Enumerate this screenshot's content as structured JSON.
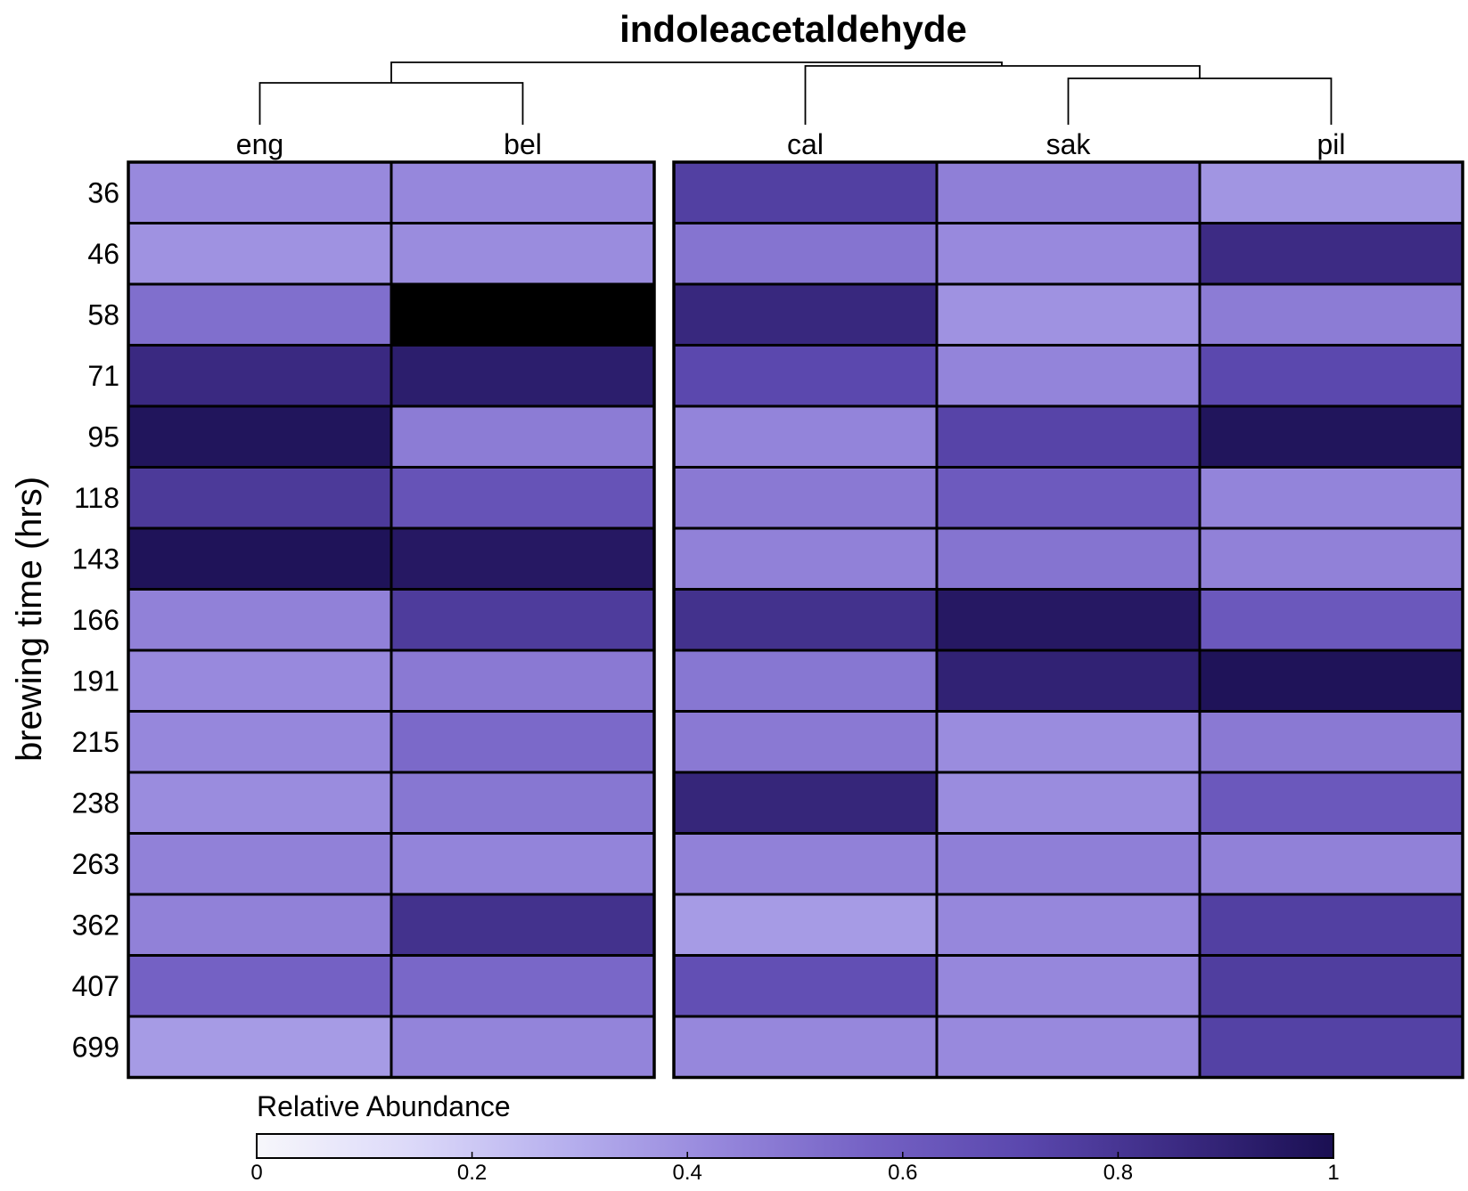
{
  "chart_data": {
    "type": "heatmap",
    "title": "indoleacetaldehyde",
    "ylabel": "brewing time (hrs)",
    "column_groups": [
      [
        "eng",
        "bel"
      ],
      [
        "cal",
        "sak",
        "pil"
      ]
    ],
    "columns": [
      "eng",
      "bel",
      "cal",
      "sak",
      "pil"
    ],
    "rows": [
      "36",
      "46",
      "58",
      "71",
      "95",
      "118",
      "143",
      "166",
      "191",
      "215",
      "238",
      "263",
      "362",
      "407",
      "699"
    ],
    "values": [
      [
        0.42,
        0.43,
        0.75,
        0.46,
        0.38
      ],
      [
        0.39,
        0.41,
        0.5,
        0.42,
        0.85
      ],
      [
        0.52,
        1.0,
        0.87,
        0.39,
        0.47
      ],
      [
        0.86,
        0.92,
        0.71,
        0.44,
        0.71
      ],
      [
        0.97,
        0.47,
        0.44,
        0.73,
        0.97
      ],
      [
        0.78,
        0.65,
        0.48,
        0.61,
        0.44
      ],
      [
        0.98,
        0.95,
        0.45,
        0.5,
        0.45
      ],
      [
        0.45,
        0.77,
        0.82,
        0.95,
        0.62
      ],
      [
        0.42,
        0.48,
        0.49,
        0.9,
        0.98
      ],
      [
        0.43,
        0.54,
        0.48,
        0.41,
        0.48
      ],
      [
        0.41,
        0.49,
        0.88,
        0.41,
        0.62
      ],
      [
        0.45,
        0.44,
        0.45,
        0.46,
        0.45
      ],
      [
        0.45,
        0.82,
        0.36,
        0.43,
        0.75
      ],
      [
        0.57,
        0.55,
        0.67,
        0.43,
        0.76
      ],
      [
        0.36,
        0.44,
        0.43,
        0.42,
        0.74
      ]
    ],
    "dendrogram": {
      "left_cluster": [
        "eng",
        "bel"
      ],
      "right_cluster": [
        "cal",
        [
          "sak",
          "pil"
        ]
      ]
    },
    "colorbar": {
      "title": "Relative Abundance",
      "range": [
        0,
        1
      ],
      "ticks": [
        0,
        0.2,
        0.4,
        0.6,
        0.8,
        1
      ],
      "tick_labels": [
        "0",
        "0.2",
        "0.4",
        "0.6",
        "0.8",
        "1"
      ],
      "colors": [
        "#f7f7fb",
        "#dcd9f9",
        "#b7b0ee",
        "#9687dc",
        "#7461c4",
        "#5a47ad",
        "#3b2a82",
        "#1a0f52"
      ]
    },
    "colors": {
      "high": "#000000",
      "max_valued": "#1a0f52"
    }
  }
}
